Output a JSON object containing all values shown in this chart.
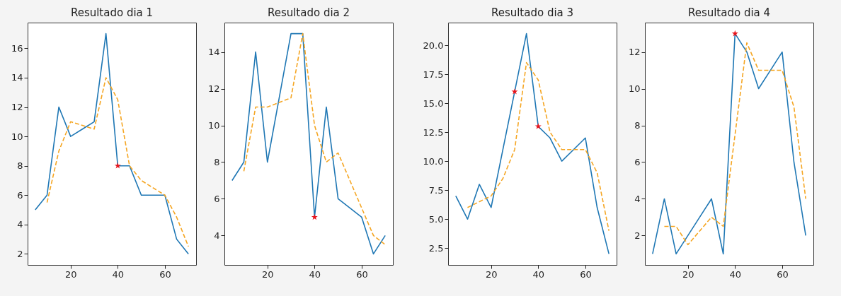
{
  "chart_data": [
    {
      "type": "line",
      "title": "Resultado dia 1",
      "x": [
        5,
        10,
        15,
        20,
        25,
        30,
        35,
        40,
        45,
        50,
        55,
        60,
        65,
        70
      ],
      "xlim": [
        1.75,
        73.25
      ],
      "xticks": [
        20,
        40,
        60
      ],
      "ylim": [
        1.25,
        17.75
      ],
      "yticks": [
        2,
        4,
        6,
        8,
        10,
        12,
        14,
        16
      ],
      "series": [
        {
          "color": "#1f77b4",
          "line_style": "solid",
          "values": [
            5,
            6,
            12,
            10,
            10.5,
            11,
            17,
            8,
            8,
            6,
            6,
            6,
            3,
            2
          ]
        },
        {
          "color": "#f5a623",
          "line_style": "dashed",
          "values": [
            null,
            5.5,
            9,
            11,
            10.75,
            10.5,
            14,
            12.5,
            8,
            7,
            6.5,
            6,
            4.5,
            2.5
          ]
        },
        {
          "type": "scatter",
          "marker": "star",
          "color": "#e8141c",
          "values": [
            null,
            null,
            null,
            null,
            null,
            null,
            null,
            8,
            null,
            null,
            null,
            null,
            null,
            null
          ]
        }
      ]
    },
    {
      "type": "line",
      "title": "Resultado dia 2",
      "x": [
        5,
        10,
        15,
        20,
        25,
        30,
        35,
        40,
        45,
        50,
        55,
        60,
        65,
        70
      ],
      "xlim": [
        1.75,
        73.25
      ],
      "xticks": [
        20,
        40,
        60
      ],
      "ylim": [
        2.4,
        15.6
      ],
      "yticks": [
        4,
        6,
        8,
        10,
        12,
        14
      ],
      "series": [
        {
          "color": "#1f77b4",
          "line_style": "solid",
          "values": [
            7,
            8,
            14,
            8,
            11.5,
            15,
            15,
            5,
            11,
            6,
            5.5,
            5,
            3,
            4
          ]
        },
        {
          "color": "#f5a623",
          "line_style": "dashed",
          "values": [
            null,
            7.5,
            11,
            11,
            11.25,
            11.5,
            15,
            10,
            8,
            8.5,
            7,
            5.5,
            4,
            3.5
          ]
        },
        {
          "type": "scatter",
          "marker": "star",
          "color": "#e8141c",
          "values": [
            null,
            null,
            null,
            null,
            null,
            null,
            null,
            5,
            null,
            null,
            null,
            null,
            null,
            null
          ]
        }
      ]
    },
    {
      "type": "line",
      "title": "Resultado dia 3",
      "x": [
        5,
        10,
        15,
        20,
        25,
        30,
        35,
        40,
        45,
        50,
        55,
        60,
        65,
        70
      ],
      "xlim": [
        1.75,
        73.25
      ],
      "xticks": [
        20,
        40,
        60
      ],
      "ylim": [
        1.05,
        21.95
      ],
      "yticks": [
        {
          "value": 2.5,
          "label": "2.5"
        },
        {
          "value": 5,
          "label": "5.0"
        },
        {
          "value": 7.5,
          "label": "7.5"
        },
        {
          "value": 10,
          "label": "10.0"
        },
        {
          "value": 12.5,
          "label": "12.5"
        },
        {
          "value": 15,
          "label": "15.0"
        },
        {
          "value": 17.5,
          "label": "17.5"
        },
        {
          "value": 20,
          "label": "20.0"
        }
      ],
      "series": [
        {
          "color": "#1f77b4",
          "line_style": "solid",
          "values": [
            7,
            5,
            8,
            6,
            11,
            16,
            21,
            13,
            12,
            10,
            11,
            12,
            6,
            2
          ]
        },
        {
          "color": "#f5a623",
          "line_style": "dashed",
          "values": [
            null,
            6,
            6.5,
            7,
            8.5,
            11,
            18.5,
            17,
            12.5,
            11,
            11,
            11,
            9,
            4
          ]
        },
        {
          "type": "scatter",
          "marker": "star",
          "color": "#e8141c",
          "values": [
            null,
            null,
            null,
            null,
            null,
            16,
            null,
            13,
            null,
            null,
            null,
            null,
            null,
            null
          ]
        }
      ]
    },
    {
      "type": "line",
      "title": "Resultado dia 4",
      "x": [
        5,
        10,
        15,
        20,
        25,
        30,
        35,
        40,
        45,
        50,
        55,
        60,
        65,
        70
      ],
      "xlim": [
        1.75,
        73.25
      ],
      "xticks": [
        20,
        40,
        60
      ],
      "ylim": [
        0.4,
        13.6
      ],
      "yticks": [
        2,
        4,
        6,
        8,
        10,
        12
      ],
      "series": [
        {
          "color": "#1f77b4",
          "line_style": "solid",
          "values": [
            1,
            4,
            1,
            2,
            3,
            4,
            1,
            13,
            12,
            10,
            11,
            12,
            6,
            2
          ]
        },
        {
          "color": "#f5a623",
          "line_style": "dashed",
          "values": [
            null,
            2.5,
            2.5,
            1.5,
            2.25,
            3,
            2.5,
            7.5,
            12.5,
            11,
            11,
            11,
            9,
            4
          ]
        },
        {
          "type": "scatter",
          "marker": "star",
          "color": "#e8141c",
          "values": [
            null,
            null,
            null,
            null,
            null,
            null,
            null,
            13,
            null,
            null,
            null,
            null,
            null,
            null
          ]
        }
      ]
    }
  ]
}
